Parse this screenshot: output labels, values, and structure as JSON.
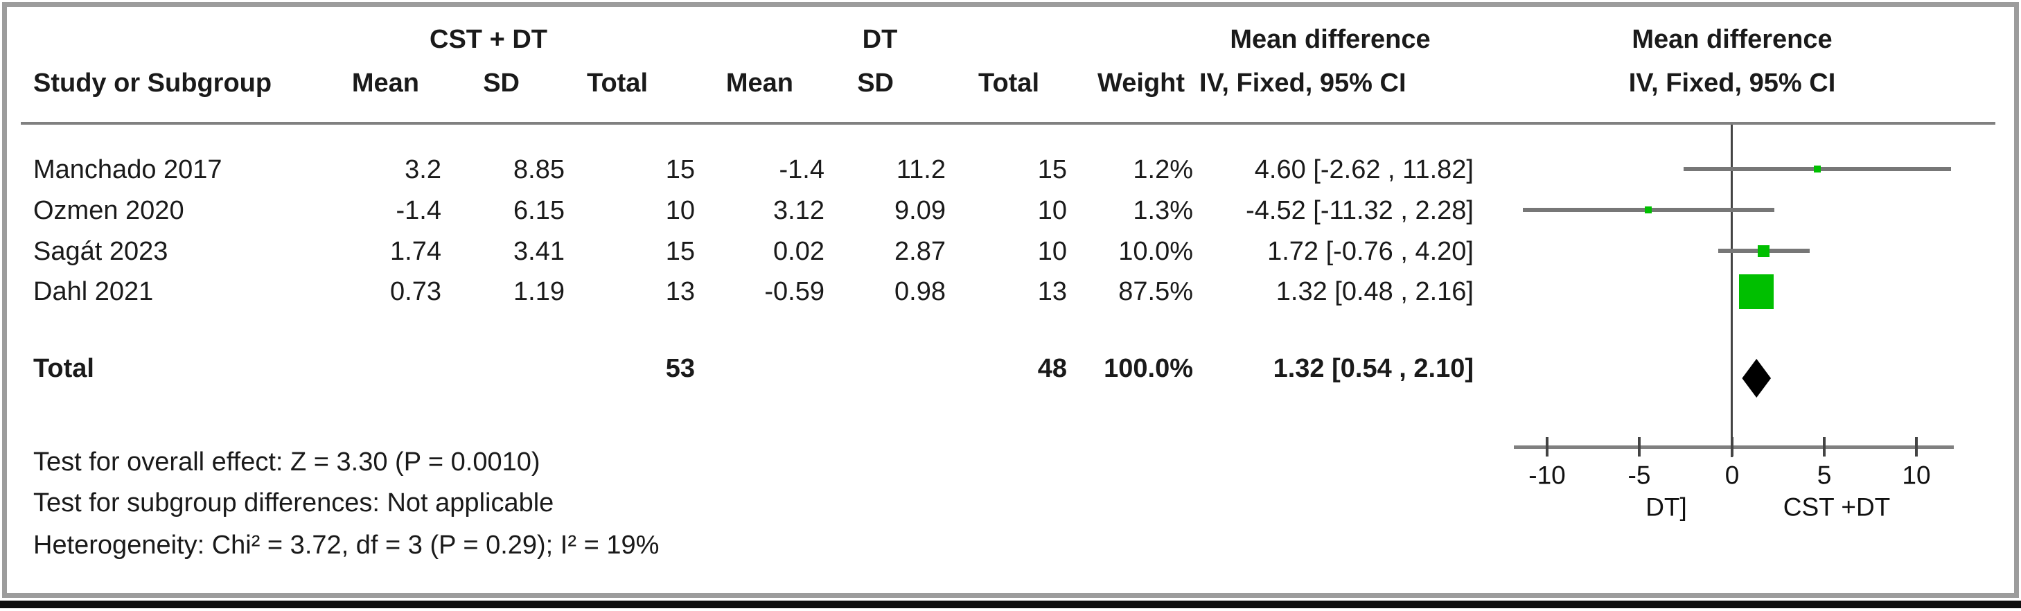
{
  "header": {
    "study": "Study or Subgroup",
    "group1": "CST + DT",
    "group2": "DT",
    "mean": "Mean",
    "sd": "SD",
    "total": "Total",
    "weight": "Weight",
    "md": "Mean difference",
    "ci_method": "IV, Fixed, 95% CI"
  },
  "table": {
    "rows": [
      {
        "study": "Manchado 2017",
        "cells": [
          "3.2",
          "8.85",
          "15",
          "-1.4",
          "11.2",
          "15",
          "1.2%",
          "4.60 [-2.62 , 11.82]"
        ]
      },
      {
        "study": "Ozmen 2020",
        "cells": [
          "-1.4",
          "6.15",
          "10",
          "3.12",
          "9.09",
          "10",
          "1.3%",
          "-4.52 [-11.32 , 2.28]"
        ]
      },
      {
        "study": "Sagát 2023",
        "cells": [
          "1.74",
          "3.41",
          "15",
          "0.02",
          "2.87",
          "10",
          "10.0%",
          "1.72 [-0.76 , 4.20]"
        ]
      },
      {
        "study": "Dahl 2021",
        "cells": [
          "0.73",
          "1.19",
          "13",
          "-0.59",
          "0.98",
          "13",
          "87.5%",
          "1.32 [0.48 , 2.16]"
        ]
      }
    ],
    "total": {
      "label": "Total",
      "total1": "53",
      "total2": "48",
      "weight": "100.0%",
      "ci": "1.32 [0.54 , 2.10]"
    }
  },
  "footer": {
    "lines": [
      "Test for overall effect: Z = 3.30 (P = 0.0010)",
      "Test for subgroup differences: Not applicable",
      "Heterogeneity: Chi² = 3.72, df = 3 (P = 0.29); I² = 19%"
    ]
  },
  "colors": {
    "marker_green": "#00bf00",
    "ci_line_gray": "#777777",
    "diamond_black": "#000000",
    "rule_gray": "#808080"
  },
  "chart_data": {
    "type": "forest",
    "effect_measure": "Mean difference",
    "model": "IV, Fixed, 95% CI",
    "studies": [
      {
        "name": "Manchado 2017",
        "mean1": 3.2,
        "sd1": 8.85,
        "n1": 15,
        "mean2": -1.4,
        "sd2": 11.2,
        "n2": 15,
        "weight_pct": 1.2,
        "est": 4.6,
        "ci_low": -2.62,
        "ci_high": 11.82
      },
      {
        "name": "Ozmen 2020",
        "mean1": -1.4,
        "sd1": 6.15,
        "n1": 10,
        "mean2": 3.12,
        "sd2": 9.09,
        "n2": 10,
        "weight_pct": 1.3,
        "est": -4.52,
        "ci_low": -11.32,
        "ci_high": 2.28
      },
      {
        "name": "Sagát 2023",
        "mean1": 1.74,
        "sd1": 3.41,
        "n1": 15,
        "mean2": 0.02,
        "sd2": 2.87,
        "n2": 10,
        "weight_pct": 10.0,
        "est": 1.72,
        "ci_low": -0.76,
        "ci_high": 4.2
      },
      {
        "name": "Dahl 2021",
        "mean1": 0.73,
        "sd1": 1.19,
        "n1": 13,
        "mean2": -0.59,
        "sd2": 0.98,
        "n2": 13,
        "weight_pct": 87.5,
        "est": 1.32,
        "ci_low": 0.48,
        "ci_high": 2.16
      }
    ],
    "total": {
      "n1": 53,
      "n2": 48,
      "weight_pct": 100.0,
      "est": 1.32,
      "ci_low": 0.54,
      "ci_high": 2.1
    },
    "overall_effect": "Z = 3.30 (P = 0.0010)",
    "heterogeneity": "Chi² = 3.72, df = 3 (P = 0.29); I² = 19%",
    "xaxis": {
      "range": [
        -12,
        12
      ],
      "ticks": [
        -10,
        -5,
        0,
        5,
        10
      ],
      "tick_labels": [
        "-10",
        "-5",
        "0",
        "5",
        "10"
      ],
      "label_left": "DT]",
      "label_right": "CST +DT"
    }
  }
}
